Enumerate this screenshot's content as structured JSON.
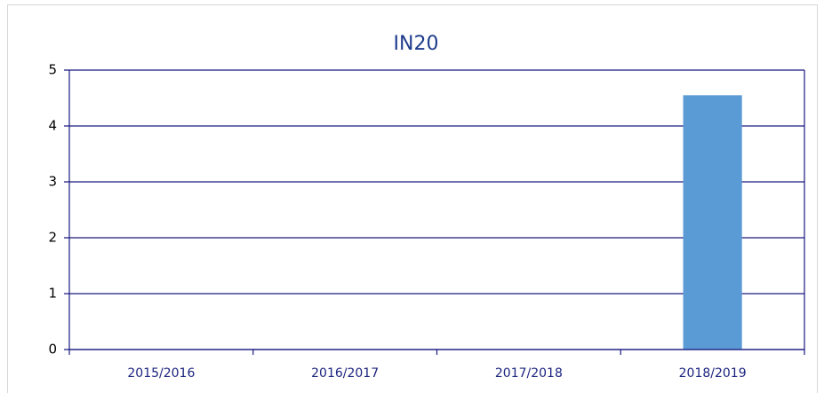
{
  "chart_data": {
    "type": "bar",
    "title": "IN20",
    "categories": [
      "2015/2016",
      "2016/2017",
      "2017/2018",
      "2018/2019"
    ],
    "values": [
      0,
      0,
      0,
      4.55
    ],
    "color": "#5b9bd5",
    "ylim": [
      0,
      5
    ],
    "yticks": [
      0,
      1,
      2,
      3,
      4,
      5
    ],
    "grid": true
  }
}
